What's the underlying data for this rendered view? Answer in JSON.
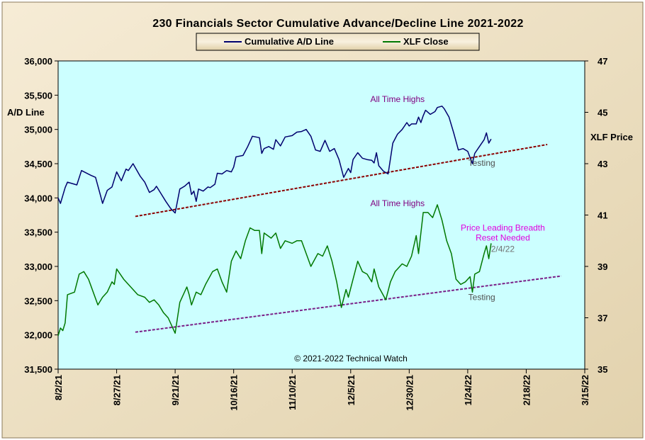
{
  "chart_data": {
    "type": "line",
    "title": "230 Financials  Sector Cumulative  Advance/Decline  Line  2021-2022",
    "ylabel_left": "A/D Line",
    "ylabel_right": "XLF Price",
    "ylim_left": [
      31500,
      36000
    ],
    "ylim_right": [
      35,
      47
    ],
    "left_ticks": [
      "31,500",
      "32,000",
      "32,500",
      "33,000",
      "33,500",
      "34,000",
      "34,500",
      "35,000",
      "35,500",
      "36,000"
    ],
    "right_ticks": [
      "35",
      "37",
      "39",
      "41",
      "43",
      "45",
      "47"
    ],
    "x_ticks": [
      "8/2/21",
      "8/27/21",
      "9/21/21",
      "10/16/21",
      "11/10/21",
      "12/5/21",
      "12/30/21",
      "1/24/22",
      "2/18/22",
      "3/15/22"
    ],
    "x_tick_dates": [
      "2021-08-02",
      "2021-08-27",
      "2021-09-21",
      "2021-10-16",
      "2021-11-10",
      "2021-12-05",
      "2021-12-30",
      "2022-01-24",
      "2022-02-18",
      "2022-03-15"
    ],
    "grid": false,
    "legend_position": "top-center",
    "series": [
      {
        "name": "Cumulative A/D Line",
        "axis": "left",
        "color": "#00006e",
        "points": [
          [
            "2021-08-02",
            34000
          ],
          [
            "2021-08-03",
            33920
          ],
          [
            "2021-08-05",
            34150
          ],
          [
            "2021-08-06",
            34230
          ],
          [
            "2021-08-09",
            34200
          ],
          [
            "2021-08-10",
            34190
          ],
          [
            "2021-08-12",
            34400
          ],
          [
            "2021-08-16",
            34330
          ],
          [
            "2021-08-18",
            34300
          ],
          [
            "2021-08-20",
            34050
          ],
          [
            "2021-08-21",
            33920
          ],
          [
            "2021-08-23",
            34110
          ],
          [
            "2021-08-25",
            34160
          ],
          [
            "2021-08-27",
            34380
          ],
          [
            "2021-08-29",
            34250
          ],
          [
            "2021-08-31",
            34420
          ],
          [
            "2021-09-01",
            34400
          ],
          [
            "2021-09-03",
            34500
          ],
          [
            "2021-09-06",
            34320
          ],
          [
            "2021-09-08",
            34230
          ],
          [
            "2021-09-10",
            34080
          ],
          [
            "2021-09-12",
            34120
          ],
          [
            "2021-09-13",
            34170
          ],
          [
            "2021-09-15",
            34060
          ],
          [
            "2021-09-17",
            33950
          ],
          [
            "2021-09-19",
            33850
          ],
          [
            "2021-09-21",
            33780
          ],
          [
            "2021-09-23",
            34130
          ],
          [
            "2021-09-25",
            34170
          ],
          [
            "2021-09-27",
            34230
          ],
          [
            "2021-09-28",
            34050
          ],
          [
            "2021-09-29",
            34100
          ],
          [
            "2021-09-30",
            33950
          ],
          [
            "2021-10-01",
            34130
          ],
          [
            "2021-10-03",
            34100
          ],
          [
            "2021-10-05",
            34160
          ],
          [
            "2021-10-06",
            34150
          ],
          [
            "2021-10-08",
            34200
          ],
          [
            "2021-10-09",
            34360
          ],
          [
            "2021-10-11",
            34350
          ],
          [
            "2021-10-13",
            34400
          ],
          [
            "2021-10-15",
            34380
          ],
          [
            "2021-10-16",
            34450
          ],
          [
            "2021-10-17",
            34600
          ],
          [
            "2021-10-20",
            34620
          ],
          [
            "2021-10-22",
            34750
          ],
          [
            "2021-10-24",
            34900
          ],
          [
            "2021-10-27",
            34880
          ],
          [
            "2021-10-28",
            34650
          ],
          [
            "2021-10-29",
            34720
          ],
          [
            "2021-10-31",
            34750
          ],
          [
            "2021-11-02",
            34710
          ],
          [
            "2021-11-03",
            34850
          ],
          [
            "2021-11-05",
            34760
          ],
          [
            "2021-11-07",
            34890
          ],
          [
            "2021-11-10",
            34910
          ],
          [
            "2021-11-12",
            34960
          ],
          [
            "2021-11-14",
            34970
          ],
          [
            "2021-11-16",
            35000
          ],
          [
            "2021-11-18",
            34900
          ],
          [
            "2021-11-20",
            34700
          ],
          [
            "2021-11-22",
            34680
          ],
          [
            "2021-11-24",
            34840
          ],
          [
            "2021-11-26",
            34680
          ],
          [
            "2021-11-28",
            34720
          ],
          [
            "2021-11-30",
            34560
          ],
          [
            "2021-12-02",
            34300
          ],
          [
            "2021-12-04",
            34430
          ],
          [
            "2021-12-05",
            34370
          ],
          [
            "2021-12-06",
            34560
          ],
          [
            "2021-12-08",
            34660
          ],
          [
            "2021-12-10",
            34580
          ],
          [
            "2021-12-12",
            34560
          ],
          [
            "2021-12-14",
            34550
          ],
          [
            "2021-12-15",
            34510
          ],
          [
            "2021-12-16",
            34660
          ],
          [
            "2021-12-17",
            34470
          ],
          [
            "2021-12-19",
            34390
          ],
          [
            "2021-12-21",
            34350
          ],
          [
            "2021-12-23",
            34800
          ],
          [
            "2021-12-25",
            34930
          ],
          [
            "2021-12-27",
            35000
          ],
          [
            "2021-12-29",
            35100
          ],
          [
            "2021-12-30",
            35050
          ],
          [
            "2021-12-31",
            35080
          ],
          [
            "2022-01-02",
            35080
          ],
          [
            "2022-01-03",
            35180
          ],
          [
            "2022-01-04",
            35100
          ],
          [
            "2022-01-05",
            35200
          ],
          [
            "2022-01-06",
            35280
          ],
          [
            "2022-01-08",
            35220
          ],
          [
            "2022-01-10",
            35260
          ],
          [
            "2022-01-11",
            35320
          ],
          [
            "2022-01-13",
            35340
          ],
          [
            "2022-01-14",
            35300
          ],
          [
            "2022-01-16",
            35180
          ],
          [
            "2022-01-18",
            34950
          ],
          [
            "2022-01-20",
            34700
          ],
          [
            "2022-01-22",
            34720
          ],
          [
            "2022-01-24",
            34680
          ],
          [
            "2022-01-26",
            34500
          ],
          [
            "2022-01-27",
            34650
          ],
          [
            "2022-01-29",
            34750
          ],
          [
            "2022-01-31",
            34850
          ],
          [
            "2022-02-01",
            34950
          ],
          [
            "2022-02-02",
            34800
          ],
          [
            "2022-02-03",
            34860
          ]
        ]
      },
      {
        "name": "XLF Close",
        "axis": "right",
        "color": "#007800",
        "points": [
          [
            "2021-08-02",
            36.3
          ],
          [
            "2021-08-03",
            36.6
          ],
          [
            "2021-08-04",
            36.5
          ],
          [
            "2021-08-05",
            36.8
          ],
          [
            "2021-08-06",
            37.9
          ],
          [
            "2021-08-09",
            38.0
          ],
          [
            "2021-08-11",
            38.7
          ],
          [
            "2021-08-13",
            38.8
          ],
          [
            "2021-08-15",
            38.5
          ],
          [
            "2021-08-19",
            37.5
          ],
          [
            "2021-08-21",
            37.8
          ],
          [
            "2021-08-23",
            38.0
          ],
          [
            "2021-08-25",
            38.4
          ],
          [
            "2021-08-26",
            38.3
          ],
          [
            "2021-08-27",
            38.9
          ],
          [
            "2021-08-30",
            38.5
          ],
          [
            "2021-09-02",
            38.2
          ],
          [
            "2021-09-05",
            37.9
          ],
          [
            "2021-09-08",
            37.8
          ],
          [
            "2021-09-10",
            37.6
          ],
          [
            "2021-09-12",
            37.7
          ],
          [
            "2021-09-14",
            37.5
          ],
          [
            "2021-09-16",
            37.2
          ],
          [
            "2021-09-18",
            37.0
          ],
          [
            "2021-09-21",
            36.4
          ],
          [
            "2021-09-23",
            37.6
          ],
          [
            "2021-09-26",
            38.2
          ],
          [
            "2021-09-27",
            37.9
          ],
          [
            "2021-09-28",
            37.5
          ],
          [
            "2021-09-30",
            38.0
          ],
          [
            "2021-10-02",
            37.9
          ],
          [
            "2021-10-04",
            38.3
          ],
          [
            "2021-10-07",
            38.8
          ],
          [
            "2021-10-09",
            38.9
          ],
          [
            "2021-10-11",
            38.4
          ],
          [
            "2021-10-13",
            38.0
          ],
          [
            "2021-10-15",
            39.2
          ],
          [
            "2021-10-17",
            39.6
          ],
          [
            "2021-10-19",
            39.3
          ],
          [
            "2021-10-21",
            40.0
          ],
          [
            "2021-10-23",
            40.5
          ],
          [
            "2021-10-25",
            40.4
          ],
          [
            "2021-10-27",
            40.4
          ],
          [
            "2021-10-28",
            39.5
          ],
          [
            "2021-10-29",
            40.3
          ],
          [
            "2021-11-01",
            40.1
          ],
          [
            "2021-11-03",
            40.3
          ],
          [
            "2021-11-05",
            39.7
          ],
          [
            "2021-11-07",
            40.0
          ],
          [
            "2021-11-10",
            39.9
          ],
          [
            "2021-11-12",
            40.0
          ],
          [
            "2021-11-14",
            40.0
          ],
          [
            "2021-11-16",
            39.5
          ],
          [
            "2021-11-18",
            39.0
          ],
          [
            "2021-11-21",
            39.5
          ],
          [
            "2021-11-23",
            39.4
          ],
          [
            "2021-11-25",
            39.8
          ],
          [
            "2021-11-27",
            39.2
          ],
          [
            "2021-11-29",
            38.4
          ],
          [
            "2021-12-01",
            37.4
          ],
          [
            "2021-12-03",
            38.1
          ],
          [
            "2021-12-04",
            37.8
          ],
          [
            "2021-12-06",
            38.5
          ],
          [
            "2021-12-08",
            39.2
          ],
          [
            "2021-12-10",
            38.8
          ],
          [
            "2021-12-12",
            38.7
          ],
          [
            "2021-12-14",
            38.4
          ],
          [
            "2021-12-15",
            38.9
          ],
          [
            "2021-12-17",
            38.2
          ],
          [
            "2021-12-20",
            37.7
          ],
          [
            "2021-12-22",
            38.4
          ],
          [
            "2021-12-24",
            38.8
          ],
          [
            "2021-12-27",
            39.1
          ],
          [
            "2021-12-29",
            39.0
          ],
          [
            "2021-12-31",
            39.4
          ],
          [
            "2022-01-02",
            40.2
          ],
          [
            "2022-01-03",
            39.5
          ],
          [
            "2022-01-05",
            41.1
          ],
          [
            "2022-01-07",
            41.1
          ],
          [
            "2022-01-09",
            40.9
          ],
          [
            "2022-01-11",
            41.4
          ],
          [
            "2022-01-13",
            40.8
          ],
          [
            "2022-01-15",
            40.0
          ],
          [
            "2022-01-17",
            39.5
          ],
          [
            "2022-01-19",
            38.5
          ],
          [
            "2022-01-21",
            38.3
          ],
          [
            "2022-01-23",
            38.4
          ],
          [
            "2022-01-25",
            38.6
          ],
          [
            "2022-01-26",
            38.0
          ],
          [
            "2022-01-27",
            38.7
          ],
          [
            "2022-01-29",
            38.8
          ],
          [
            "2022-01-31",
            39.5
          ],
          [
            "2022-02-01",
            39.8
          ],
          [
            "2022-02-02",
            39.3
          ],
          [
            "2022-02-03",
            39.9
          ]
        ]
      }
    ],
    "trendlines": [
      {
        "axis": "left",
        "color": "#8b0000",
        "points": [
          [
            "2021-09-04",
            33730
          ],
          [
            "2022-02-27",
            34780
          ]
        ]
      },
      {
        "axis": "left",
        "color": "#7a2088",
        "points": [
          [
            "2021-09-04",
            32040
          ],
          [
            "2022-03-05",
            32860
          ]
        ]
      }
    ],
    "annotations": [
      {
        "text": "All Time Highs",
        "color": "#800080",
        "date": "2021-12-25",
        "value": 35400
      },
      {
        "text": "All Time Highs",
        "color": "#800080",
        "date": "2021-12-25",
        "value": 33880
      },
      {
        "text": "Testing",
        "color": "#505050",
        "date": "2022-01-30",
        "value": 34470
      },
      {
        "text": "Testing",
        "color": "#505050",
        "date": "2022-01-30",
        "value": 32510
      },
      {
        "text": "Price Leading  Breadth",
        "color": "#e000e0",
        "date": "2022-02-08",
        "value": 33520
      },
      {
        "text": "Reset Needed",
        "color": "#e000e0",
        "date": "2022-02-08",
        "value": 33380
      },
      {
        "text": "2/4/22",
        "color": "#707070",
        "date": "2022-02-08",
        "value": 33210
      }
    ],
    "copyright": "© 2021-2022  Technical Watch"
  }
}
